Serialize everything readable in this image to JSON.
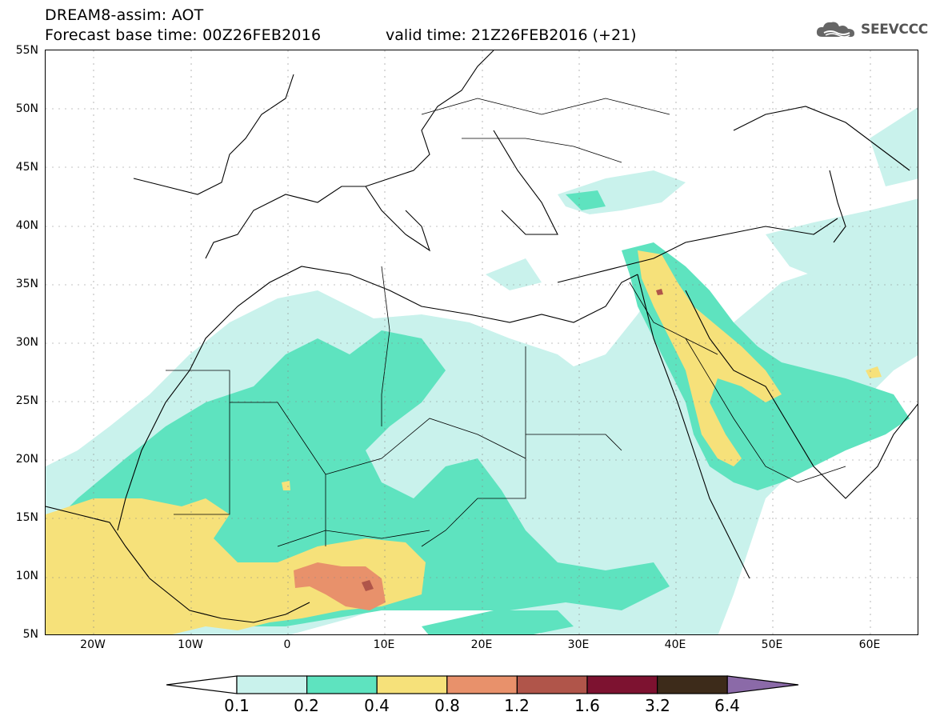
{
  "title": {
    "line1": "DREAM8-assim: AOT",
    "line2": "Forecast base time: 00Z26FEB2016",
    "valid": "valid time: 21Z26FEB2016 (+21)"
  },
  "logo": {
    "text": "SEEVCCC",
    "icon": "cloud-icon"
  },
  "axes": {
    "lat_labels": [
      "55N",
      "50N",
      "45N",
      "40N",
      "35N",
      "30N",
      "25N",
      "20N",
      "15N",
      "10N",
      "5N"
    ],
    "lon_labels": [
      "20W",
      "10W",
      "0",
      "10E",
      "20E",
      "30E",
      "40E",
      "50E",
      "60E"
    ],
    "lon_range": [
      -25,
      65
    ],
    "lat_range": [
      5,
      55
    ]
  },
  "legend": {
    "labels": [
      "0.1",
      "0.2",
      "0.4",
      "0.8",
      "1.2",
      "1.6",
      "3.2",
      "6.4"
    ],
    "colors": [
      "#ffffff",
      "#c9f2ec",
      "#5ee3bf",
      "#f6e17a",
      "#e8916b",
      "#b0554a",
      "#7d1230",
      "#3d2b1a",
      "#8b6aa8"
    ]
  }
}
